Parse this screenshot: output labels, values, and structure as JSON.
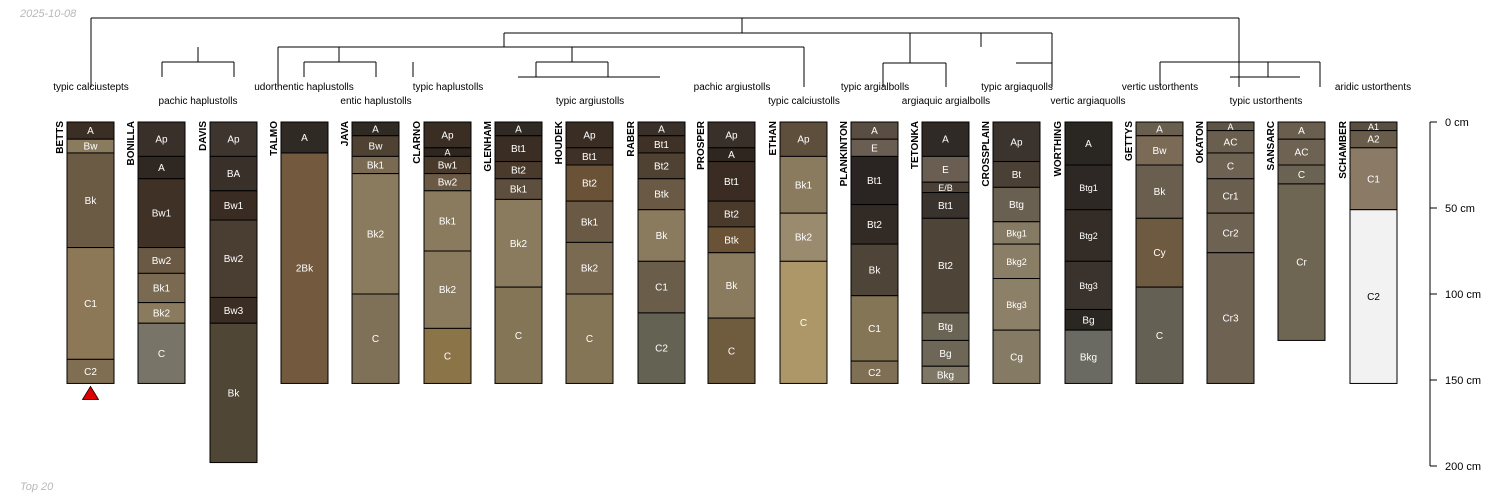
{
  "header": {
    "date": "2025-10-08"
  },
  "footer": {
    "caption": "Top 20"
  },
  "chart_data": {
    "type": "soil-profile-sketch",
    "depth_units": "cm",
    "depth_axis": {
      "range": [
        0,
        200
      ],
      "ticks": [
        0,
        50,
        100,
        150,
        200
      ],
      "tick_labels": [
        "0 cm",
        "50 cm",
        "100 cm",
        "150 cm",
        "200 cm"
      ]
    },
    "legend": "none",
    "grid": false,
    "dendrogram_leaves": [
      "typic calciustepts",
      "pachic haplustolls",
      "udorthentic haplustolls",
      "entic haplustolls",
      "typic haplustolls",
      "typic argiustolls",
      "pachic argiustolls",
      "typic calciustolls",
      "typic argialbolls",
      "argiaquic argialbolls",
      "typic argiaquolls",
      "vertic argiaquolls",
      "vertic ustorthents",
      "typic ustorthents",
      "aridic ustorthents"
    ],
    "marker": {
      "profile": "BETTS",
      "symbol": "triangle",
      "color": "#e00000"
    },
    "profiles": [
      {
        "name": "BETTS",
        "horizons": [
          {
            "name": "A",
            "top": 0,
            "bottom": 10,
            "color": "#3b2e24"
          },
          {
            "name": "Bw",
            "top": 10,
            "bottom": 18,
            "color": "#8a7a5e"
          },
          {
            "name": "Bk",
            "top": 18,
            "bottom": 73,
            "color": "#6b5b45"
          },
          {
            "name": "C1",
            "top": 73,
            "bottom": 138,
            "color": "#8c7856"
          },
          {
            "name": "C2",
            "top": 138,
            "bottom": 152,
            "color": "#7f6e52"
          }
        ]
      },
      {
        "name": "BONILLA",
        "horizons": [
          {
            "name": "Ap",
            "top": 0,
            "bottom": 20,
            "color": "#3a302a"
          },
          {
            "name": "A",
            "top": 20,
            "bottom": 33,
            "color": "#2f2722"
          },
          {
            "name": "Bw1",
            "top": 33,
            "bottom": 73,
            "color": "#3f3126"
          },
          {
            "name": "Bw2",
            "top": 73,
            "bottom": 88,
            "color": "#6a5a45"
          },
          {
            "name": "Bk1",
            "top": 88,
            "bottom": 105,
            "color": "#7a6a52"
          },
          {
            "name": "Bk2",
            "top": 105,
            "bottom": 117,
            "color": "#8a7a5e"
          },
          {
            "name": "C",
            "top": 117,
            "bottom": 152,
            "color": "#787468"
          }
        ]
      },
      {
        "name": "DAVIS",
        "horizons": [
          {
            "name": "Ap",
            "top": 0,
            "bottom": 20,
            "color": "#3d352e"
          },
          {
            "name": "BA",
            "top": 20,
            "bottom": 40,
            "color": "#3a302a"
          },
          {
            "name": "Bw1",
            "top": 40,
            "bottom": 57,
            "color": "#3a2c22"
          },
          {
            "name": "Bw2",
            "top": 57,
            "bottom": 102,
            "color": "#4a3e33"
          },
          {
            "name": "Bw3",
            "top": 102,
            "bottom": 117,
            "color": "#3a2e24"
          },
          {
            "name": "Bk",
            "top": 117,
            "bottom": 198,
            "color": "#4f4636"
          }
        ]
      },
      {
        "name": "TALMO",
        "horizons": [
          {
            "name": "A",
            "top": 0,
            "bottom": 18,
            "color": "#2f2a24"
          },
          {
            "name": "2Bk",
            "top": 18,
            "bottom": 152,
            "color": "#73593d"
          }
        ]
      },
      {
        "name": "JAVA",
        "horizons": [
          {
            "name": "A",
            "top": 0,
            "bottom": 8,
            "color": "#2f2a24"
          },
          {
            "name": "Bw",
            "top": 8,
            "bottom": 20,
            "color": "#4f4233"
          },
          {
            "name": "Bk1",
            "top": 20,
            "bottom": 30,
            "color": "#7a6a52"
          },
          {
            "name": "Bk2",
            "top": 30,
            "bottom": 100,
            "color": "#8a7a5e"
          },
          {
            "name": "C",
            "top": 100,
            "bottom": 152,
            "color": "#7f7158"
          }
        ]
      },
      {
        "name": "CLARNO",
        "horizons": [
          {
            "name": "Ap",
            "top": 0,
            "bottom": 15,
            "color": "#3a2e24"
          },
          {
            "name": "A",
            "top": 15,
            "bottom": 20,
            "color": "#2f271f"
          },
          {
            "name": "Bw1",
            "top": 20,
            "bottom": 30,
            "color": "#4a3a2b"
          },
          {
            "name": "Bw2",
            "top": 30,
            "bottom": 40,
            "color": "#6a5a45"
          },
          {
            "name": "Bk1",
            "top": 40,
            "bottom": 75,
            "color": "#8a7a5e"
          },
          {
            "name": "Bk2",
            "top": 75,
            "bottom": 120,
            "color": "#8a7a5e"
          },
          {
            "name": "C",
            "top": 120,
            "bottom": 152,
            "color": "#8c7449"
          }
        ]
      },
      {
        "name": "GLENHAM",
        "horizons": [
          {
            "name": "A",
            "top": 0,
            "bottom": 8,
            "color": "#2f2a24"
          },
          {
            "name": "Bt1",
            "top": 8,
            "bottom": 23,
            "color": "#3a2e24"
          },
          {
            "name": "Bt2",
            "top": 23,
            "bottom": 33,
            "color": "#4a3a2b"
          },
          {
            "name": "Bk1",
            "top": 33,
            "bottom": 45,
            "color": "#5d4e3d"
          },
          {
            "name": "Bk2",
            "top": 45,
            "bottom": 96,
            "color": "#8a7a5e"
          },
          {
            "name": "C",
            "top": 96,
            "bottom": 152,
            "color": "#857557"
          }
        ]
      },
      {
        "name": "HOUDEK",
        "horizons": [
          {
            "name": "Ap",
            "top": 0,
            "bottom": 15,
            "color": "#3a2e24"
          },
          {
            "name": "Bt1",
            "top": 15,
            "bottom": 25,
            "color": "#3f3126"
          },
          {
            "name": "Bt2",
            "top": 25,
            "bottom": 46,
            "color": "#6a5236"
          },
          {
            "name": "Bk1",
            "top": 46,
            "bottom": 70,
            "color": "#6a5a45"
          },
          {
            "name": "Bk2",
            "top": 70,
            "bottom": 100,
            "color": "#7a6a52"
          },
          {
            "name": "C",
            "top": 100,
            "bottom": 152,
            "color": "#857557"
          }
        ]
      },
      {
        "name": "RABER",
        "horizons": [
          {
            "name": "A",
            "top": 0,
            "bottom": 8,
            "color": "#3a302a"
          },
          {
            "name": "Bt1",
            "top": 8,
            "bottom": 18,
            "color": "#3f3126"
          },
          {
            "name": "Bt2",
            "top": 18,
            "bottom": 33,
            "color": "#4f4233"
          },
          {
            "name": "Btk",
            "top": 33,
            "bottom": 51,
            "color": "#6a5a45"
          },
          {
            "name": "Bk",
            "top": 51,
            "bottom": 81,
            "color": "#8a7a5e"
          },
          {
            "name": "C1",
            "top": 81,
            "bottom": 111,
            "color": "#6a5e4b"
          },
          {
            "name": "C2",
            "top": 111,
            "bottom": 152,
            "color": "#646253"
          }
        ]
      },
      {
        "name": "PROSPER",
        "horizons": [
          {
            "name": "Ap",
            "top": 0,
            "bottom": 15,
            "color": "#3a302a"
          },
          {
            "name": "A",
            "top": 15,
            "bottom": 23,
            "color": "#2f271f"
          },
          {
            "name": "Bt1",
            "top": 23,
            "bottom": 46,
            "color": "#3a2c22"
          },
          {
            "name": "Bt2",
            "top": 46,
            "bottom": 61,
            "color": "#4a3a2b"
          },
          {
            "name": "Btk",
            "top": 61,
            "bottom": 76,
            "color": "#6a5236"
          },
          {
            "name": "Bk",
            "top": 76,
            "bottom": 114,
            "color": "#8a7a5e"
          },
          {
            "name": "C",
            "top": 114,
            "bottom": 152,
            "color": "#6f5b3e"
          }
        ]
      },
      {
        "name": "ETHAN",
        "horizons": [
          {
            "name": "Ap",
            "top": 0,
            "bottom": 20,
            "color": "#5e4e3c"
          },
          {
            "name": "Bk1",
            "top": 20,
            "bottom": 53,
            "color": "#8a7a5e"
          },
          {
            "name": "Bk2",
            "top": 53,
            "bottom": 81,
            "color": "#9a8a6e"
          },
          {
            "name": "C",
            "top": 81,
            "bottom": 152,
            "color": "#ad9668"
          }
        ]
      },
      {
        "name": "PLANKINTON",
        "horizons": [
          {
            "name": "A",
            "top": 0,
            "bottom": 10,
            "color": "#5a4e42"
          },
          {
            "name": "E",
            "top": 10,
            "bottom": 20,
            "color": "#6a5e52"
          },
          {
            "name": "Bt1",
            "top": 20,
            "bottom": 48,
            "color": "#2a2522"
          },
          {
            "name": "Bt2",
            "top": 48,
            "bottom": 71,
            "color": "#322a24"
          },
          {
            "name": "Bk",
            "top": 71,
            "bottom": 101,
            "color": "#4f4438"
          },
          {
            "name": "C1",
            "top": 101,
            "bottom": 139,
            "color": "#857557"
          },
          {
            "name": "C2",
            "top": 139,
            "bottom": 152,
            "color": "#7f6f55"
          }
        ]
      },
      {
        "name": "TETONKA",
        "horizons": [
          {
            "name": "A",
            "top": 0,
            "bottom": 20,
            "color": "#2f2a26"
          },
          {
            "name": "E",
            "top": 20,
            "bottom": 35,
            "color": "#6a5e52"
          },
          {
            "name": "E/B",
            "top": 35,
            "bottom": 41,
            "color": "#4a4036"
          },
          {
            "name": "Bt1",
            "top": 41,
            "bottom": 56,
            "color": "#3a322c"
          },
          {
            "name": "Bt2",
            "top": 56,
            "bottom": 111,
            "color": "#4f4438"
          },
          {
            "name": "Btg",
            "top": 111,
            "bottom": 127,
            "color": "#6a6455"
          },
          {
            "name": "Bg",
            "top": 127,
            "bottom": 142,
            "color": "#6e6656"
          },
          {
            "name": "Bkg",
            "top": 142,
            "bottom": 152,
            "color": "#7f7766"
          }
        ]
      },
      {
        "name": "CROSSPLAIN",
        "horizons": [
          {
            "name": "Ap",
            "top": 0,
            "bottom": 23,
            "color": "#3a332e"
          },
          {
            "name": "Bt",
            "top": 23,
            "bottom": 38,
            "color": "#4a4036"
          },
          {
            "name": "Btg",
            "top": 38,
            "bottom": 58,
            "color": "#6a6052"
          },
          {
            "name": "Bkg1",
            "top": 58,
            "bottom": 71,
            "color": "#857a64"
          },
          {
            "name": "Bkg2",
            "top": 71,
            "bottom": 91,
            "color": "#8a7e66"
          },
          {
            "name": "Bkg3",
            "top": 91,
            "bottom": 121,
            "color": "#8c8068"
          },
          {
            "name": "Cg",
            "top": 121,
            "bottom": 152,
            "color": "#857a64"
          }
        ]
      },
      {
        "name": "WORTHING",
        "horizons": [
          {
            "name": "A",
            "top": 0,
            "bottom": 25,
            "color": "#2a2622"
          },
          {
            "name": "Btg1",
            "top": 25,
            "bottom": 51,
            "color": "#2e2824"
          },
          {
            "name": "Btg2",
            "top": 51,
            "bottom": 81,
            "color": "#342c26"
          },
          {
            "name": "Btg3",
            "top": 81,
            "bottom": 109,
            "color": "#3a322c"
          },
          {
            "name": "Bg",
            "top": 109,
            "bottom": 121,
            "color": "#2a2622"
          },
          {
            "name": "Bkg",
            "top": 121,
            "bottom": 152,
            "color": "#6a6a62"
          }
        ]
      },
      {
        "name": "GETTYS",
        "horizons": [
          {
            "name": "A",
            "top": 0,
            "bottom": 8,
            "color": "#6a5e4e"
          },
          {
            "name": "Bw",
            "top": 8,
            "bottom": 25,
            "color": "#7a6a56"
          },
          {
            "name": "Bk",
            "top": 25,
            "bottom": 56,
            "color": "#6a5e4e"
          },
          {
            "name": "Cy",
            "top": 56,
            "bottom": 96,
            "color": "#6e5a40"
          },
          {
            "name": "C",
            "top": 96,
            "bottom": 152,
            "color": "#646053"
          }
        ]
      },
      {
        "name": "OKATON",
        "horizons": [
          {
            "name": "A",
            "top": 0,
            "bottom": 5,
            "color": "#5e5446"
          },
          {
            "name": "AC",
            "top": 5,
            "bottom": 18,
            "color": "#6a5e4e"
          },
          {
            "name": "C",
            "top": 18,
            "bottom": 33,
            "color": "#6e6252"
          },
          {
            "name": "Cr1",
            "top": 33,
            "bottom": 53,
            "color": "#6a5e4e"
          },
          {
            "name": "Cr2",
            "top": 53,
            "bottom": 76,
            "color": "#6e6252"
          },
          {
            "name": "Cr3",
            "top": 76,
            "bottom": 152,
            "color": "#6e6252"
          }
        ]
      },
      {
        "name": "SANSARC",
        "horizons": [
          {
            "name": "A",
            "top": 0,
            "bottom": 10,
            "color": "#6a5e4e"
          },
          {
            "name": "AC",
            "top": 10,
            "bottom": 25,
            "color": "#6e6252"
          },
          {
            "name": "C",
            "top": 25,
            "bottom": 36,
            "color": "#6a6252"
          },
          {
            "name": "Cr",
            "top": 36,
            "bottom": 127,
            "color": "#6e6652"
          }
        ]
      },
      {
        "name": "SCHAMBER",
        "horizons": [
          {
            "name": "A1",
            "top": 0,
            "bottom": 5,
            "color": "#5a4e40"
          },
          {
            "name": "A2",
            "top": 5,
            "bottom": 15,
            "color": "#6a5c4a"
          },
          {
            "name": "C1",
            "top": 15,
            "bottom": 51,
            "color": "#8a7a66"
          },
          {
            "name": "C2",
            "top": 51,
            "bottom": 152,
            "color": "#f2f2f2"
          }
        ]
      }
    ]
  }
}
